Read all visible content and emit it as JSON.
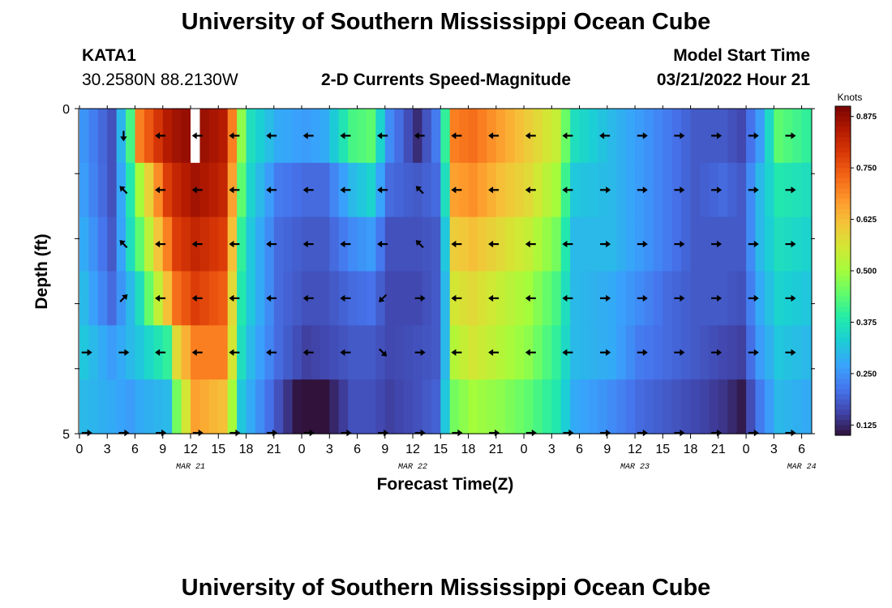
{
  "header": {
    "title": "University of Southern Mississippi Ocean Cube",
    "station_id": "KATA1",
    "station_coords": "30.2580N  88.2130W",
    "product": "2-D Currents Speed-Magnitude",
    "model_start_label": "Model Start Time",
    "model_start_value": "03/21/2022 Hour 21"
  },
  "footer": {
    "title": "University of Southern Mississippi Ocean Cube"
  },
  "chart_data": {
    "type": "heatmap",
    "title": "2-D Currents Speed-Magnitude",
    "xlabel": "Forecast Time(Z)",
    "ylabel": "Depth (ft)",
    "x_ticks": [
      "0",
      "3",
      "6",
      "9",
      "12",
      "15",
      "18",
      "21",
      "0",
      "3",
      "6",
      "9",
      "12",
      "15",
      "18",
      "21",
      "0",
      "3",
      "6",
      "9",
      "12",
      "15",
      "18",
      "21",
      "0",
      "3",
      "6"
    ],
    "y_ticks": [
      "0",
      "5"
    ],
    "ylim": [
      0,
      5
    ],
    "date_labels": [
      {
        "label": "MAR 21",
        "at_hour": 12
      },
      {
        "label": "MAR 22",
        "at_hour": 36
      },
      {
        "label": "MAR 23",
        "at_hour": 60
      },
      {
        "label": "MAR 24",
        "at_hour": 78
      }
    ],
    "hours_per_column": 1,
    "n_hours": 79,
    "depth_layers": 6,
    "speed_keyframes": [
      {
        "hour": 0,
        "values": [
          0.25,
          0.26,
          0.28,
          0.3,
          0.32,
          0.3
        ]
      },
      {
        "hour": 3,
        "values": [
          0.17,
          0.17,
          0.18,
          0.2,
          0.26,
          0.28
        ]
      },
      {
        "hour": 5,
        "values": [
          0.42,
          0.38,
          0.36,
          0.3,
          0.3,
          0.26
        ]
      },
      {
        "hour": 6,
        "values": [
          0.7,
          0.5,
          0.44,
          0.36,
          0.32,
          0.28
        ]
      },
      {
        "hour": 9,
        "values": [
          0.84,
          0.78,
          0.7,
          0.62,
          0.4,
          0.3
        ]
      },
      {
        "hour": 10,
        "values": [
          0.86,
          0.82,
          0.78,
          0.72,
          0.58,
          0.46
        ]
      },
      {
        "hour": 12,
        "values": [
          0.88,
          0.86,
          0.82,
          0.78,
          0.7,
          0.66
        ]
      },
      {
        "hour": 15,
        "values": [
          0.84,
          0.82,
          0.78,
          0.74,
          0.7,
          0.62
        ]
      },
      {
        "hour": 16,
        "values": [
          0.7,
          0.66,
          0.62,
          0.58,
          0.56,
          0.5
        ]
      },
      {
        "hour": 17,
        "values": [
          0.48,
          0.44,
          0.4,
          0.38,
          0.36,
          0.32
        ]
      },
      {
        "hour": 18,
        "values": [
          0.36,
          0.34,
          0.32,
          0.32,
          0.3,
          0.28
        ]
      },
      {
        "hour": 21,
        "values": [
          0.28,
          0.22,
          0.2,
          0.2,
          0.2,
          0.17
        ]
      },
      {
        "hour": 24,
        "values": [
          0.26,
          0.2,
          0.18,
          0.17,
          0.15,
          0.07
        ]
      },
      {
        "hour": 26,
        "values": [
          0.28,
          0.2,
          0.18,
          0.17,
          0.16,
          0.1
        ]
      },
      {
        "hour": 29,
        "values": [
          0.42,
          0.3,
          0.24,
          0.2,
          0.18,
          0.17
        ]
      },
      {
        "hour": 31,
        "values": [
          0.44,
          0.34,
          0.26,
          0.21,
          0.18,
          0.17
        ]
      },
      {
        "hour": 33,
        "values": [
          0.24,
          0.2,
          0.17,
          0.16,
          0.16,
          0.15
        ]
      },
      {
        "hour": 36,
        "values": [
          0.13,
          0.18,
          0.17,
          0.16,
          0.17,
          0.17
        ]
      },
      {
        "hour": 38,
        "values": [
          0.22,
          0.2,
          0.18,
          0.18,
          0.18,
          0.19
        ]
      },
      {
        "hour": 39,
        "values": [
          0.4,
          0.36,
          0.32,
          0.3,
          0.3,
          0.32
        ]
      },
      {
        "hour": 40,
        "values": [
          0.7,
          0.66,
          0.6,
          0.56,
          0.52,
          0.46
        ]
      },
      {
        "hour": 42,
        "values": [
          0.72,
          0.68,
          0.62,
          0.58,
          0.56,
          0.5
        ]
      },
      {
        "hour": 45,
        "values": [
          0.66,
          0.62,
          0.58,
          0.54,
          0.52,
          0.48
        ]
      },
      {
        "hour": 48,
        "values": [
          0.6,
          0.58,
          0.54,
          0.5,
          0.48,
          0.44
        ]
      },
      {
        "hour": 51,
        "values": [
          0.54,
          0.5,
          0.46,
          0.42,
          0.4,
          0.38
        ]
      },
      {
        "hour": 53,
        "values": [
          0.36,
          0.32,
          0.3,
          0.3,
          0.3,
          0.28
        ]
      },
      {
        "hour": 57,
        "values": [
          0.3,
          0.3,
          0.3,
          0.28,
          0.28,
          0.24
        ]
      },
      {
        "hour": 60,
        "values": [
          0.26,
          0.26,
          0.26,
          0.24,
          0.22,
          0.2
        ]
      },
      {
        "hour": 63,
        "values": [
          0.22,
          0.22,
          0.22,
          0.2,
          0.2,
          0.18
        ]
      },
      {
        "hour": 66,
        "values": [
          0.18,
          0.18,
          0.18,
          0.18,
          0.18,
          0.16
        ]
      },
      {
        "hour": 69,
        "values": [
          0.18,
          0.2,
          0.18,
          0.18,
          0.16,
          0.14
        ]
      },
      {
        "hour": 71,
        "values": [
          0.16,
          0.18,
          0.18,
          0.17,
          0.15,
          0.11
        ]
      },
      {
        "hour": 73,
        "values": [
          0.26,
          0.3,
          0.3,
          0.28,
          0.26,
          0.22
        ]
      },
      {
        "hour": 75,
        "values": [
          0.44,
          0.38,
          0.36,
          0.34,
          0.32,
          0.3
        ]
      },
      {
        "hour": 78,
        "values": [
          0.4,
          0.36,
          0.34,
          0.32,
          0.3,
          0.28
        ]
      }
    ],
    "missing_cells": [
      {
        "hour": 12,
        "layer": 0
      }
    ],
    "arrow_hours": [
      0,
      4,
      8,
      12,
      16,
      20,
      24,
      28,
      32,
      36,
      40,
      44,
      48,
      52,
      56,
      60,
      64,
      68,
      72,
      76
    ],
    "arrow_rows": [
      [
        null,
        "S",
        "W",
        "W",
        "W",
        "W",
        "W",
        "W",
        "W",
        "W",
        "W",
        "W",
        "W",
        "W",
        "W",
        "E",
        "E",
        "E",
        "E",
        "E"
      ],
      [
        null,
        "NW",
        "W",
        "W",
        "W",
        "W",
        "W",
        "W",
        "W",
        "NW",
        "W",
        "W",
        "W",
        "W",
        "E",
        "E",
        "E",
        "E",
        "E",
        "E"
      ],
      [
        null,
        "NW",
        "W",
        "W",
        "W",
        "W",
        "W",
        "W",
        "W",
        "NW",
        "W",
        "W",
        "W",
        "W",
        "E",
        "E",
        "E",
        "E",
        "E",
        "E"
      ],
      [
        null,
        "NE",
        "W",
        "W",
        "W",
        "W",
        "W",
        "W",
        "SW",
        "E",
        "W",
        "W",
        "W",
        "W",
        "E",
        "E",
        "E",
        "E",
        "E",
        "E"
      ],
      [
        "E",
        "E",
        "W",
        "W",
        "W",
        "W",
        "W",
        "W",
        "SE",
        "E",
        "W",
        "W",
        "W",
        "W",
        "E",
        "E",
        "E",
        "E",
        "E",
        "E"
      ],
      [
        "E",
        "E",
        "E",
        "E",
        "E",
        "E",
        "E",
        "E",
        "E",
        "E",
        "E",
        "E",
        "E",
        "E",
        "E",
        "E",
        "E",
        "E",
        "E",
        "E"
      ]
    ],
    "colorbar": {
      "units": "Knots",
      "min": 0.1,
      "max": 0.9,
      "ticks": [
        "0.875",
        "0.750",
        "0.625",
        "0.500",
        "0.375",
        "0.250",
        "0.125"
      ],
      "tick_values": [
        0.875,
        0.75,
        0.625,
        0.5,
        0.375,
        0.25,
        0.125
      ]
    },
    "colors": {
      "missing": "#ffffff",
      "axis": "#000000",
      "arrow": "#000000"
    }
  }
}
